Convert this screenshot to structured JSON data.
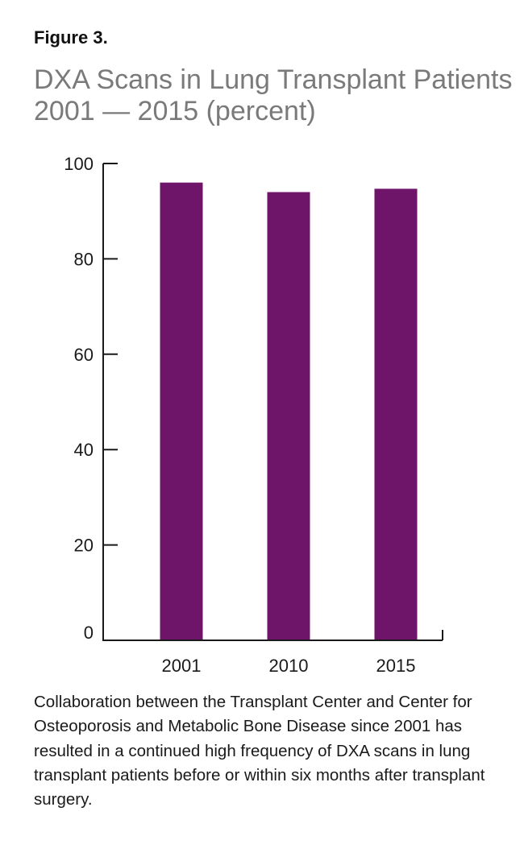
{
  "figure_label": "Figure 3.",
  "title_lines": [
    "DXA Scans in Lung Transplant Patients",
    "2001 — 2015 (percent)"
  ],
  "caption": "Collaboration between the Transplant Center and Center for Osteoporosis and Metabolic Bone Disease since 2001 has resulted in a continued high frequency of DXA scans in lung transplant patients before or within six months after transplant surgery.",
  "colors": {
    "bar": "#6e1469",
    "axis": "#1a1a1a",
    "title": "#7a7a7a"
  },
  "chart_data": {
    "type": "bar",
    "title": "DXA Scans in Lung Transplant Patients 2001 — 2015 (percent)",
    "categories": [
      "2001",
      "2010",
      "2015"
    ],
    "values": [
      96,
      94,
      94.7
    ],
    "ylim": [
      0,
      100
    ],
    "yticks": [
      0,
      20,
      40,
      60,
      80,
      100
    ],
    "xlabel": "",
    "ylabel": "",
    "grid": false,
    "legend": "none"
  }
}
